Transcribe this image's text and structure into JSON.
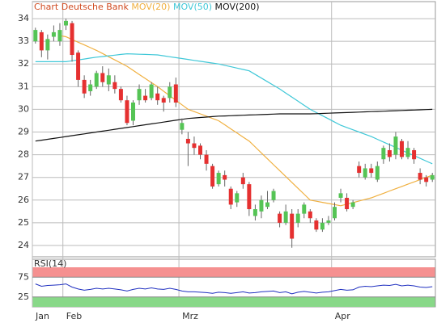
{
  "chart_data": [
    {
      "type": "candlestick",
      "title": "Chart Deutsche Bank",
      "title_color": "#d04a20",
      "categories": [
        "Jan",
        null,
        null,
        null,
        null,
        "Feb",
        null,
        null,
        null,
        null,
        null,
        null,
        null,
        null,
        null,
        null,
        null,
        null,
        null,
        null,
        null,
        null,
        null,
        null,
        "Mrz",
        null,
        null,
        null,
        null,
        null,
        null,
        null,
        null,
        null,
        null,
        null,
        null,
        null,
        null,
        null,
        null,
        null,
        null,
        null,
        null,
        null,
        null,
        null,
        null,
        "Apr",
        null,
        null,
        null,
        null,
        null,
        null,
        null,
        null,
        null,
        null,
        null,
        null,
        null,
        null,
        null,
        null
      ],
      "open": [
        33.0,
        33.4,
        32.6,
        33.2,
        33.0,
        33.7,
        33.8,
        32.5,
        31.3,
        30.8,
        31.0,
        31.6,
        31.1,
        31.2,
        30.9,
        30.4,
        29.5,
        30.4,
        30.6,
        30.5,
        30.7,
        30.5,
        30.5,
        31.1,
        29.1,
        28.7,
        28.5,
        28.4,
        28.0,
        27.5,
        26.7,
        27.1,
        26.5,
        25.9,
        27.0,
        26.7,
        25.3,
        25.5,
        25.7,
        26.0,
        25.4,
        25.0,
        25.4,
        25.0,
        25.4,
        25.5,
        25.1,
        24.7,
        25.0,
        25.2,
        26.1,
        26.1,
        25.7,
        27.5,
        27.0,
        27.4,
        26.9,
        27.8,
        28.2,
        28.0,
        28.6,
        27.9,
        28.2,
        27.2,
        27.0,
        26.9
      ],
      "high": [
        33.6,
        33.5,
        33.3,
        33.7,
        33.8,
        34.0,
        33.9,
        32.6,
        31.5,
        31.3,
        31.7,
        31.9,
        31.8,
        31.5,
        31.0,
        30.6,
        30.4,
        31.1,
        30.9,
        31.2,
        31.0,
        30.6,
        31.2,
        31.4,
        29.6,
        29.0,
        28.8,
        28.5,
        28.2,
        27.6,
        27.3,
        27.3,
        26.6,
        26.4,
        27.2,
        26.8,
        25.8,
        26.2,
        26.4,
        26.5,
        25.5,
        25.8,
        25.6,
        25.6,
        25.9,
        25.6,
        25.2,
        25.2,
        25.3,
        25.9,
        26.5,
        26.3,
        26.0,
        27.7,
        27.6,
        27.6,
        27.7,
        28.4,
        28.5,
        29.0,
        28.7,
        28.6,
        28.3,
        27.4,
        27.1,
        27.2
      ],
      "low": [
        32.9,
        32.3,
        32.2,
        33.0,
        32.8,
        33.5,
        32.1,
        31.0,
        30.5,
        30.6,
        30.9,
        31.0,
        30.8,
        30.7,
        30.3,
        29.3,
        29.3,
        30.2,
        30.3,
        30.4,
        30.2,
        29.9,
        30.3,
        30.1,
        28.9,
        27.5,
        28.0,
        27.8,
        27.3,
        26.5,
        26.6,
        26.6,
        25.6,
        25.7,
        26.5,
        25.3,
        25.1,
        25.2,
        25.6,
        25.9,
        24.8,
        24.9,
        23.9,
        24.8,
        25.2,
        25.0,
        24.6,
        24.6,
        24.9,
        25.1,
        25.9,
        25.5,
        25.6,
        27.0,
        26.9,
        27.0,
        26.8,
        27.6,
        27.7,
        27.8,
        27.8,
        27.8,
        27.6,
        26.7,
        26.6,
        26.8
      ],
      "close": [
        33.5,
        32.6,
        33.1,
        33.4,
        33.5,
        33.9,
        32.4,
        31.3,
        30.7,
        31.1,
        31.6,
        31.2,
        31.5,
        30.9,
        30.4,
        29.4,
        30.3,
        30.9,
        30.4,
        31.1,
        30.4,
        30.3,
        31.0,
        30.3,
        29.4,
        28.5,
        28.3,
        28.0,
        27.6,
        26.6,
        27.2,
        26.9,
        25.8,
        26.3,
        26.7,
        25.6,
        25.6,
        26.0,
        25.9,
        26.4,
        25.0,
        25.5,
        24.3,
        25.4,
        25.8,
        25.2,
        24.7,
        25.0,
        25.1,
        25.7,
        26.3,
        25.6,
        25.9,
        27.2,
        27.4,
        27.2,
        27.5,
        28.3,
        27.9,
        28.8,
        27.9,
        28.3,
        27.8,
        26.9,
        26.8,
        27.1
      ],
      "up_color": "#55c455",
      "down_color": "#e53030",
      "series": [
        {
          "name": "MOV(20)",
          "color": "#f0b040",
          "values": [
            null,
            null,
            null,
            null,
            33.25,
            33.2,
            33.08,
            32.96,
            32.84,
            32.72,
            32.6,
            32.46,
            32.32,
            32.18,
            32.04,
            31.9,
            31.72,
            31.54,
            31.36,
            31.18,
            31.0,
            30.8,
            30.6,
            30.4,
            30.2,
            30.0,
            29.9,
            29.8,
            29.7,
            29.6,
            29.5,
            29.32,
            29.14,
            28.96,
            28.78,
            28.6,
            28.34,
            28.08,
            27.82,
            27.56,
            27.3,
            27.04,
            26.78,
            26.52,
            26.26,
            26.0,
            25.95,
            25.9,
            25.85,
            25.8,
            25.75,
            25.82,
            25.89,
            25.96,
            26.03,
            26.1,
            26.2,
            26.3,
            26.4,
            26.5,
            26.6,
            26.7,
            26.8,
            26.9,
            27.0,
            27.1
          ]
        },
        {
          "name": "MOV(50)",
          "color": "#40c8d8",
          "values": [
            32.1,
            32.1,
            32.1,
            32.1,
            32.1,
            32.1,
            32.14,
            32.18,
            32.22,
            32.26,
            32.3,
            32.33,
            32.36,
            32.39,
            32.42,
            32.45,
            32.44,
            32.43,
            32.42,
            32.41,
            32.4,
            32.36,
            32.32,
            32.28,
            32.24,
            32.2,
            32.16,
            32.12,
            32.08,
            32.04,
            32.0,
            31.94,
            31.88,
            31.82,
            31.76,
            31.7,
            31.54,
            31.38,
            31.22,
            31.06,
            30.9,
            30.72,
            30.54,
            30.36,
            30.18,
            30.0,
            29.86,
            29.72,
            29.58,
            29.44,
            29.3,
            29.2,
            29.1,
            29.0,
            28.9,
            28.8,
            28.68,
            28.56,
            28.44,
            28.32,
            28.2,
            28.08,
            27.96,
            27.84,
            27.72,
            27.6
          ]
        },
        {
          "name": "MOV(200)",
          "color": "#111111",
          "values": [
            28.6,
            28.64,
            28.68,
            28.72,
            28.76,
            28.8,
            28.84,
            28.88,
            28.92,
            28.96,
            29.0,
            29.04,
            29.08,
            29.12,
            29.16,
            29.2,
            29.24,
            29.28,
            29.32,
            29.36,
            29.4,
            29.44,
            29.48,
            29.52,
            29.56,
            29.6,
            29.62,
            29.64,
            29.66,
            29.68,
            29.7,
            29.71,
            29.72,
            29.73,
            29.74,
            29.75,
            29.76,
            29.77,
            29.78,
            29.79,
            29.8,
            29.8,
            29.8,
            29.8,
            29.8,
            29.8,
            29.81,
            29.82,
            29.83,
            29.84,
            29.85,
            29.86,
            29.87,
            29.88,
            29.89,
            29.9,
            29.91,
            29.92,
            29.93,
            29.94,
            29.95,
            29.96,
            29.97,
            29.98,
            29.99,
            30.0
          ]
        }
      ],
      "ylim": [
        23.5,
        34.75
      ],
      "yticks": [
        24,
        25,
        26,
        27,
        28,
        29,
        30,
        31,
        32,
        33,
        34
      ],
      "grid": true
    },
    {
      "type": "line",
      "title": "RSI(14)",
      "color": "#2030c0",
      "values": [
        58,
        52,
        54,
        55,
        56,
        58,
        50,
        45,
        42,
        44,
        47,
        45,
        47,
        45,
        43,
        40,
        44,
        47,
        45,
        48,
        45,
        44,
        47,
        44,
        40,
        38,
        38,
        37,
        36,
        34,
        37,
        36,
        34,
        36,
        38,
        35,
        36,
        38,
        39,
        40,
        36,
        38,
        33,
        37,
        39,
        37,
        35,
        37,
        38,
        41,
        44,
        42,
        43,
        50,
        52,
        51,
        53,
        55,
        54,
        57,
        53,
        55,
        53,
        50,
        49,
        51
      ],
      "zones": [
        {
          "from": 75,
          "to": 100,
          "color": "#f59090"
        },
        {
          "from": 0,
          "to": 25,
          "color": "#88d888"
        }
      ],
      "ylim": [
        0,
        100
      ],
      "yticks": [
        25,
        75
      ]
    }
  ]
}
